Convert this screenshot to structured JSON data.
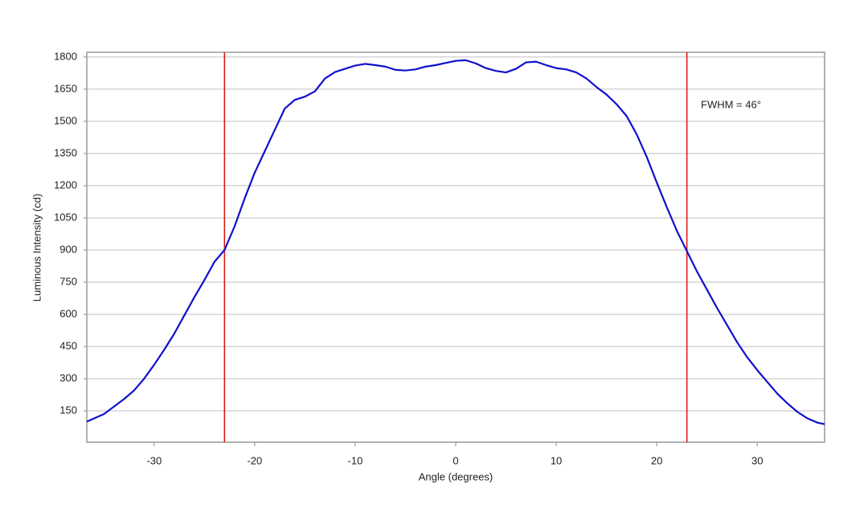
{
  "chart_data": {
    "type": "line",
    "xlabel": "Angle (degrees)",
    "ylabel": "Luminous Intensity (cd)",
    "annotation": "FWHM = 46°",
    "x": [
      -36.7,
      -35,
      -34,
      -33,
      -32,
      -31,
      -30,
      -29,
      -28,
      -27,
      -26,
      -25,
      -24,
      -23,
      -22,
      -21,
      -20,
      -19,
      -18,
      -17,
      -16,
      -15,
      -14,
      -13,
      -12,
      -11,
      -10,
      -9,
      -8,
      -7,
      -6,
      -5,
      -4,
      -3,
      -2,
      -1,
      0,
      1,
      2,
      3,
      4,
      5,
      6,
      7,
      8,
      9,
      10,
      11,
      12,
      13,
      14,
      15,
      16,
      17,
      18,
      19,
      20,
      21,
      22,
      23,
      24,
      25,
      26,
      27,
      28,
      29,
      30,
      31,
      32,
      33,
      34,
      35,
      36,
      36.7
    ],
    "series": [
      {
        "color": "#1010cc",
        "values": [
          100,
          135,
          170,
          205,
          245,
          300,
          365,
          435,
          510,
          595,
          680,
          760,
          845,
          900,
          1010,
          1140,
          1260,
          1360,
          1460,
          1560,
          1600,
          1615,
          1640,
          1700,
          1730,
          1745,
          1760,
          1768,
          1762,
          1755,
          1740,
          1737,
          1742,
          1755,
          1762,
          1772,
          1782,
          1785,
          1770,
          1748,
          1735,
          1728,
          1745,
          1775,
          1778,
          1762,
          1748,
          1742,
          1728,
          1700,
          1660,
          1625,
          1580,
          1525,
          1440,
          1335,
          1215,
          1100,
          990,
          895,
          800,
          715,
          630,
          550,
          470,
          400,
          340,
          285,
          230,
          185,
          145,
          115,
          95,
          88
        ]
      }
    ],
    "vlines": [
      {
        "x": -23,
        "color": "#dd1111"
      },
      {
        "x": 23,
        "color": "#dd1111"
      }
    ],
    "xlim": [
      -36.7,
      36.7
    ],
    "ylim": [
      4,
      1822
    ],
    "xticks": [
      -30,
      -20,
      -10,
      0,
      10,
      20,
      30
    ],
    "yticks": [
      150,
      300,
      450,
      600,
      750,
      900,
      1050,
      1200,
      1350,
      1500,
      1650,
      1800
    ],
    "grid": true
  }
}
